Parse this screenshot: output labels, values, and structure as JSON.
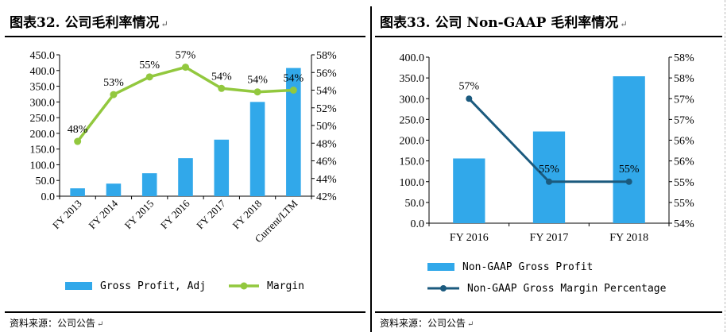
{
  "left": {
    "title": "图表32. 公司毛利率情况",
    "source": "资料来源：公司公告",
    "chart_data": {
      "type": "bar",
      "categories": [
        "FY 2013",
        "FY 2014",
        "FY 2015",
        "FY 2016",
        "FY 2017",
        "FY 2018",
        "Current/LTM"
      ],
      "series": [
        {
          "name": "Gross Profit, Adj",
          "type": "bar",
          "axis": "left",
          "color": "#31A8EA",
          "values": [
            25,
            40,
            73,
            121,
            180,
            300,
            408
          ]
        },
        {
          "name": "Margin",
          "type": "line",
          "axis": "right",
          "color": "#92C83E",
          "values": [
            48.2,
            53.5,
            55.5,
            56.6,
            54.2,
            53.8,
            54.0
          ],
          "labels": [
            "48%",
            "53%",
            "55%",
            "57%",
            "54%",
            "54%",
            "54%"
          ]
        }
      ],
      "yleft": {
        "min": 0,
        "max": 450,
        "ticks": [
          "0.0",
          "50.0",
          "100.0",
          "150.0",
          "200.0",
          "250.0",
          "300.0",
          "350.0",
          "400.0",
          "450.0"
        ]
      },
      "yright": {
        "min": 42,
        "max": 58,
        "ticks": [
          "42%",
          "44%",
          "46%",
          "48%",
          "50%",
          "52%",
          "54%",
          "56%",
          "58%"
        ]
      },
      "legend": [
        "Gross Profit, Adj",
        "Margin"
      ],
      "legend_position": "bottom",
      "grid": false
    }
  },
  "right": {
    "title": "图表33. 公司 Non-GAAP 毛利率情况",
    "source": "资料来源：公司公告",
    "chart_data": {
      "type": "bar",
      "categories": [
        "FY 2016",
        "FY 2017",
        "FY 2018"
      ],
      "series": [
        {
          "name": "Non-GAAP Gross Profit",
          "type": "bar",
          "axis": "left",
          "color": "#31A8EA",
          "values": [
            156,
            221,
            354
          ]
        },
        {
          "name": "Non-GAAP Gross Margin Percentage",
          "type": "line",
          "axis": "right",
          "color": "#1B5A7E",
          "values": [
            57.0,
            55.0,
            55.0
          ],
          "labels": [
            "57%",
            "55%",
            "55%"
          ]
        }
      ],
      "yleft": {
        "min": 0,
        "max": 400,
        "ticks": [
          "0.0",
          "50.0",
          "100.0",
          "150.0",
          "200.0",
          "250.0",
          "300.0",
          "350.0",
          "400.0"
        ]
      },
      "yright": {
        "min": 54,
        "max": 58,
        "ticks": [
          "54%",
          "55%",
          "55%",
          "56%",
          "56%",
          "57%",
          "57%",
          "58%",
          "58%"
        ]
      },
      "legend": [
        "Non-GAAP Gross Profit",
        "Non-GAAP Gross Margin Percentage"
      ],
      "legend_position": "bottom",
      "grid": false
    }
  }
}
